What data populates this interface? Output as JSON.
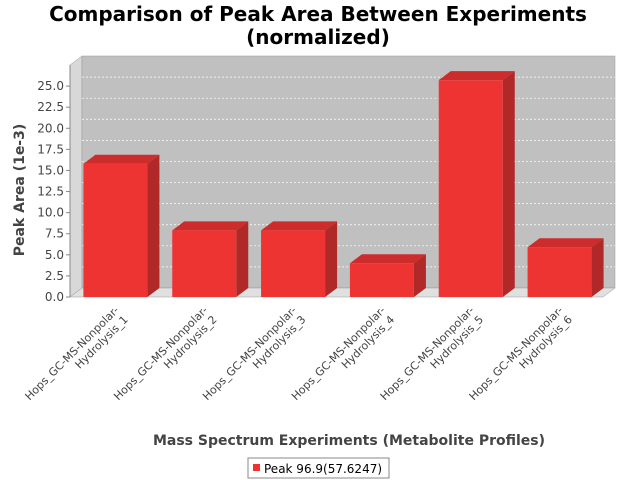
{
  "chart_data": {
    "type": "bar",
    "title_line1": "Comparison of Peak Area Between Experiments",
    "title_line2": "(normalized)",
    "xlabel": "Mass Spectrum Experiments (Metabolite Profiles)",
    "ylabel": "Peak Area (1e-3)",
    "ylim": [
      0,
      27.5
    ],
    "yticks": [
      "0.0",
      "2.5",
      "5.0",
      "7.5",
      "10.0",
      "12.5",
      "15.0",
      "17.5",
      "20.0",
      "22.5",
      "25.0"
    ],
    "categories": [
      {
        "line1": "Hops_GC-MS-Nonpolar-",
        "line2": "Hydrolysis_1"
      },
      {
        "line1": "Hops_GC-MS-Nonpolar-",
        "line2": "Hydrolysis_2"
      },
      {
        "line1": "Hops_GC-MS-Nonpolar-",
        "line2": "Hydrolysis_3"
      },
      {
        "line1": "Hops_GC-MS-Nonpolar-",
        "line2": "Hydrolysis_4"
      },
      {
        "line1": "Hops_GC-MS-Nonpolar-",
        "line2": "Hydrolysis_5"
      },
      {
        "line1": "Hops_GC-MS-Nonpolar-",
        "line2": "Hydrolysis_6"
      }
    ],
    "series": [
      {
        "name": "Peak 96.9(57.6247)",
        "values": [
          15.8,
          7.9,
          7.9,
          4.0,
          25.7,
          5.9
        ]
      }
    ],
    "grid": true,
    "legend_position": "bottom",
    "colors": {
      "bar_front": "#ee3333",
      "bar_top": "#cc2c2c",
      "bar_side": "#b02828",
      "plot_back": "#c0c0c0",
      "plot_floor": "#e0e0e0",
      "plot_left_wall": "#d8d8d8"
    }
  }
}
